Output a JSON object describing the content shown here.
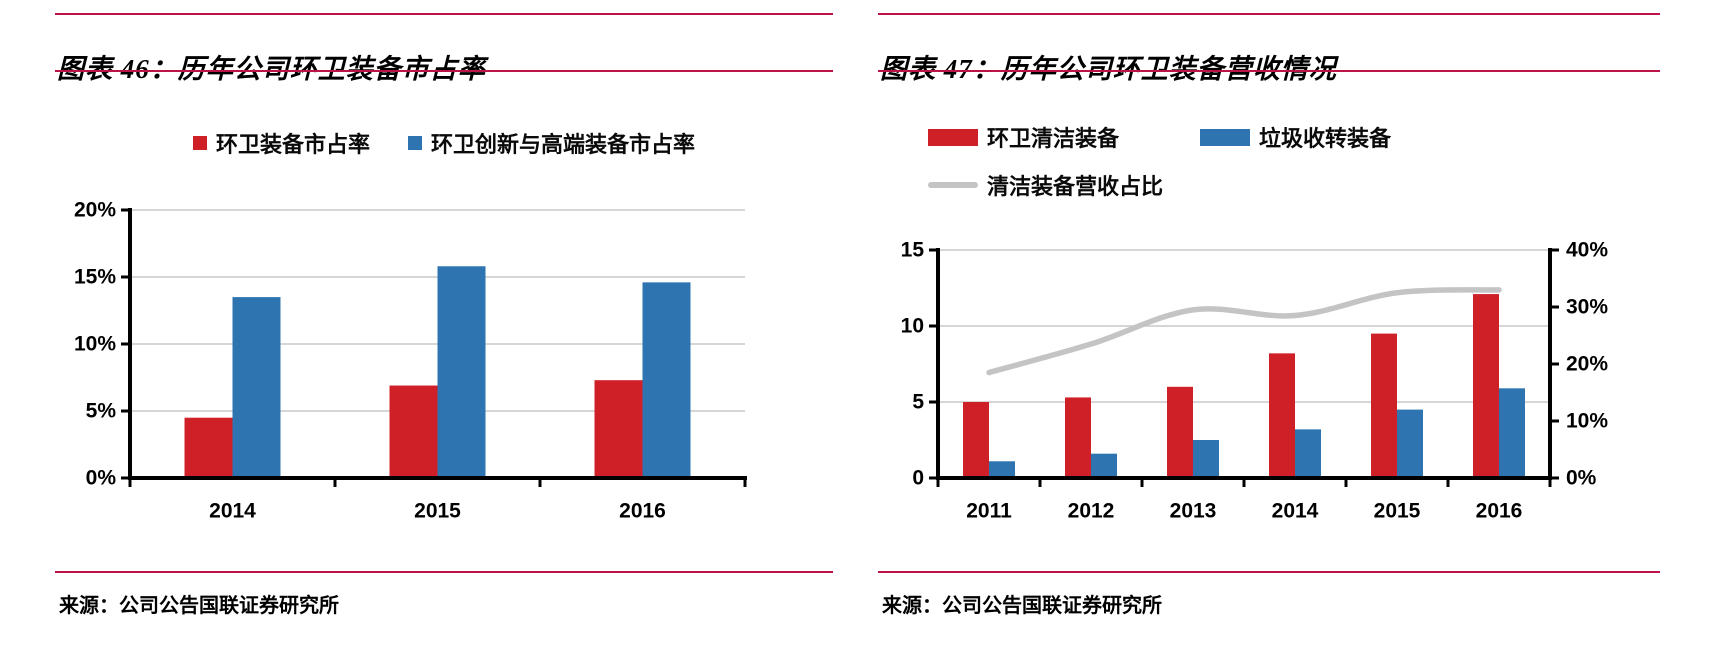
{
  "colors": {
    "rule_red": "#BE1348",
    "bar_red": "#D02027",
    "bar_blue": "#2E74B0",
    "line_gray": "#C4C4C4",
    "gridline": "#C9C9C9",
    "axis": "#000000"
  },
  "chart_data": [
    {
      "type": "bar",
      "title": "图表 46：历年公司环卫装备市占率",
      "source": "来源：公司公告国联证券研究所",
      "categories": [
        "2014",
        "2015",
        "2016"
      ],
      "series": [
        {
          "name": "环卫装备市占率",
          "type": "bar",
          "color": "#D02027",
          "values": [
            4.5,
            6.9,
            7.3
          ]
        },
        {
          "name": "环卫创新与高端装备市占率",
          "type": "bar",
          "color": "#2E74B0",
          "values": [
            13.5,
            15.8,
            14.6
          ]
        }
      ],
      "ylim": [
        0,
        20
      ],
      "ytick_values": [
        0,
        5,
        10,
        15,
        20
      ],
      "yticks": [
        "0%",
        "5%",
        "10%",
        "15%",
        "20%"
      ],
      "grid": true,
      "legend_position": "top-center"
    },
    {
      "type": "bar+line",
      "title": "图表 47：历年公司环卫装备营收情况",
      "source": "来源：公司公告国联证券研究所",
      "categories": [
        "2011",
        "2012",
        "2013",
        "2014",
        "2015",
        "2016"
      ],
      "series": [
        {
          "name": "环卫清洁装备",
          "type": "bar",
          "axis": "left",
          "color": "#D02027",
          "values": [
            5.0,
            5.3,
            6.0,
            8.2,
            9.5,
            12.1
          ]
        },
        {
          "name": "垃圾收转装备",
          "type": "bar",
          "axis": "left",
          "color": "#2E74B0",
          "values": [
            1.1,
            1.6,
            2.5,
            3.2,
            4.5,
            5.9
          ]
        },
        {
          "name": "清洁装备营收占比",
          "type": "line",
          "axis": "right",
          "color": "#C4C4C4",
          "values": [
            18.5,
            23.5,
            29.5,
            28.5,
            32.5,
            33.0
          ]
        }
      ],
      "ylim_left": [
        0,
        15
      ],
      "ytick_values_left": [
        0,
        5,
        10,
        15
      ],
      "yticks_left": [
        "0",
        "5",
        "10",
        "15"
      ],
      "ylim_right": [
        0,
        40
      ],
      "ytick_values_right": [
        0,
        10,
        20,
        30,
        40
      ],
      "yticks_right": [
        "0%",
        "10%",
        "20%",
        "30%",
        "40%"
      ],
      "grid": true,
      "legend_position": "top-left"
    }
  ]
}
